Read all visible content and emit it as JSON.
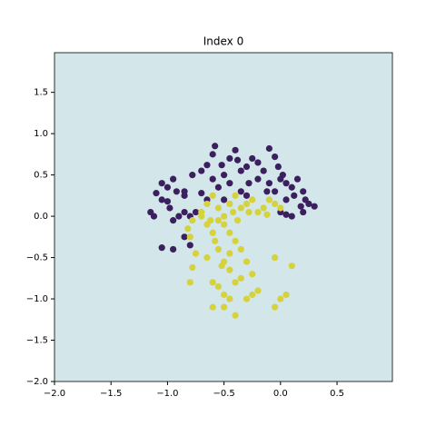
{
  "chart_data": {
    "type": "scatter",
    "title": "Index 0",
    "background": "#d3e6e9",
    "xlim": [
      -2.0,
      0.99
    ],
    "ylim": [
      -2.0,
      1.98
    ],
    "xticks": [
      {
        "value": -2,
        "label": "−2.0"
      },
      {
        "value": -1.5,
        "label": "−1.5"
      },
      {
        "value": -1,
        "label": "−1.0"
      },
      {
        "value": -0.5,
        "label": "−0.5"
      },
      {
        "value": 0,
        "label": "0.0"
      },
      0.5
    ],
    "yticks": [
      {
        "value": -2,
        "label": "−2.0"
      },
      {
        "value": -1.5,
        "label": "−1.5"
      },
      {
        "value": -1,
        "label": "−1.0"
      },
      {
        "value": -0.5,
        "label": "−0.5"
      },
      {
        "value": 0,
        "label": "0.0"
      },
      0.5,
      {
        "value": 1,
        "label": "1.0"
      },
      1.5
    ],
    "series": [
      {
        "color": "#3b1f5e",
        "x": [
          -1.15,
          -1.12,
          -1.05,
          -1.1,
          -1.0,
          -0.95,
          -0.92,
          -0.85,
          -0.85,
          -1.05,
          -1.0,
          -0.98,
          -0.95,
          -0.9,
          -0.85,
          -0.8,
          -0.75,
          -0.85,
          -0.8,
          -0.95,
          -1.05,
          -0.78,
          -0.7,
          -0.65,
          -0.6,
          -0.58,
          -0.52,
          -0.5,
          -0.45,
          -0.4,
          -0.38,
          -0.35,
          -0.3,
          -0.28,
          -0.25,
          -0.2,
          -0.15,
          -0.1,
          -0.05,
          -0.02,
          0.0,
          0.05,
          0.1,
          0.15,
          0.2,
          0.22,
          0.25,
          0.3,
          0.2,
          0.1,
          0.05,
          0.0,
          0.05,
          0.12,
          -0.05,
          -0.1,
          -0.2,
          -0.45,
          -0.55,
          -0.6,
          -0.7,
          -0.5,
          -0.35,
          -0.12,
          0.18,
          0.02,
          -0.3,
          -0.65
        ],
        "y": [
          0.05,
          0.0,
          0.4,
          0.28,
          0.35,
          0.45,
          0.3,
          0.3,
          0.25,
          0.2,
          0.18,
          0.1,
          -0.05,
          0.0,
          0.05,
          0.0,
          0.05,
          -0.25,
          -0.35,
          -0.4,
          -0.38,
          0.5,
          0.55,
          0.62,
          0.75,
          0.85,
          0.62,
          0.5,
          0.7,
          0.8,
          0.68,
          0.55,
          0.6,
          0.4,
          0.7,
          0.65,
          0.55,
          0.82,
          0.72,
          0.6,
          0.45,
          0.4,
          0.35,
          0.45,
          0.3,
          0.2,
          0.15,
          0.12,
          0.05,
          0.0,
          0.02,
          0.05,
          0.2,
          0.25,
          0.3,
          0.4,
          0.45,
          0.4,
          0.35,
          0.45,
          0.28,
          0.2,
          0.3,
          0.3,
          0.12,
          0.5,
          0.25,
          0.2
        ]
      },
      {
        "color": "#d5d23b",
        "x": [
          -0.8,
          -0.78,
          -0.75,
          -0.8,
          -0.82,
          -0.78,
          -0.7,
          -0.65,
          -0.6,
          -0.58,
          -0.55,
          -0.5,
          -0.45,
          -0.4,
          -0.35,
          -0.6,
          -0.55,
          -0.5,
          -0.45,
          -0.4,
          -0.5,
          -0.6,
          -0.3,
          -0.2,
          -0.25,
          -0.3,
          -0.35,
          -0.4,
          -0.45,
          -0.5,
          0.0,
          -0.05,
          0.05,
          0.1,
          -0.05,
          -0.7,
          -0.65,
          -0.6,
          -0.55,
          -0.5,
          -0.45,
          -0.4,
          -0.35,
          -0.3,
          -0.25,
          -0.2,
          -0.15,
          -0.1,
          -0.05,
          0.0,
          -0.12,
          -0.28,
          -0.42,
          -0.55,
          -0.62,
          -0.38,
          -0.52,
          -0.65,
          -0.25,
          -0.45
        ],
        "y": [
          -0.8,
          -0.62,
          -0.45,
          -0.25,
          -0.15,
          -0.05,
          0.0,
          -0.1,
          -0.2,
          -0.3,
          -0.4,
          -0.55,
          -0.65,
          -0.8,
          -0.75,
          -0.8,
          -0.85,
          -0.95,
          -1.0,
          -1.2,
          -1.1,
          -1.1,
          -1.0,
          -0.9,
          -0.7,
          -0.55,
          -0.4,
          -0.3,
          -0.2,
          -0.1,
          -1.0,
          -1.1,
          -0.95,
          -0.6,
          -0.5,
          0.05,
          0.15,
          0.25,
          0.1,
          0.0,
          0.15,
          0.25,
          0.1,
          0.15,
          0.2,
          0.05,
          0.1,
          0.2,
          0.15,
          0.1,
          0.02,
          0.05,
          0.05,
          -0.05,
          -0.05,
          -0.05,
          -0.6,
          -0.5,
          -0.95,
          -0.45
        ]
      }
    ]
  }
}
